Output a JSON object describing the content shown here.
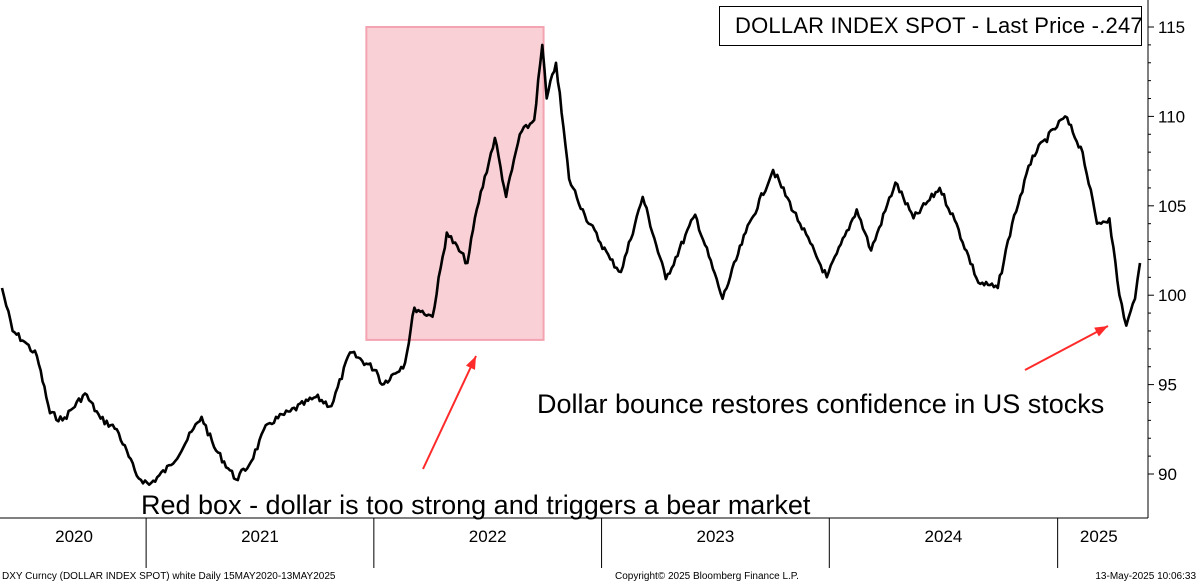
{
  "chart_data": {
    "type": "line",
    "title": "",
    "xlabel": "",
    "ylabel": "",
    "ylim": [
      87,
      116
    ],
    "yticks": [
      90,
      95,
      100,
      105,
      110,
      115
    ],
    "x_years": [
      "2020",
      "2021",
      "2022",
      "2023",
      "2024",
      "2025"
    ],
    "legend": "DOLLAR INDEX SPOT - Last Price  -.247",
    "series": [
      {
        "name": "DOLLAR INDEX SPOT - Last Price",
        "color": "#000000",
        "points": [
          [
            "2020-05-15",
            100.4
          ],
          [
            "2020-06-01",
            98.0
          ],
          [
            "2020-06-20",
            97.4
          ],
          [
            "2020-07-10",
            96.6
          ],
          [
            "2020-07-31",
            93.4
          ],
          [
            "2020-08-20",
            93.0
          ],
          [
            "2020-09-25",
            94.5
          ],
          [
            "2020-10-20",
            93.1
          ],
          [
            "2020-11-15",
            92.5
          ],
          [
            "2020-12-17",
            89.9
          ],
          [
            "2021-01-06",
            89.4
          ],
          [
            "2021-02-10",
            90.5
          ],
          [
            "2021-03-31",
            93.2
          ],
          [
            "2021-04-20",
            91.5
          ],
          [
            "2021-05-25",
            89.7
          ],
          [
            "2021-06-15",
            90.5
          ],
          [
            "2021-07-15",
            92.8
          ],
          [
            "2021-08-20",
            93.5
          ],
          [
            "2021-09-30",
            94.3
          ],
          [
            "2021-10-25",
            93.8
          ],
          [
            "2021-11-24",
            96.8
          ],
          [
            "2022-01-05",
            95.8
          ],
          [
            "2022-01-14",
            95.0
          ],
          [
            "2022-02-20",
            96.2
          ],
          [
            "2022-03-07",
            99.3
          ],
          [
            "2022-04-05",
            98.8
          ],
          [
            "2022-04-28",
            103.5
          ],
          [
            "2022-05-31",
            101.8
          ],
          [
            "2022-06-15",
            104.8
          ],
          [
            "2022-07-14",
            108.8
          ],
          [
            "2022-08-01",
            105.5
          ],
          [
            "2022-08-23",
            109.0
          ],
          [
            "2022-09-15",
            109.8
          ],
          [
            "2022-09-28",
            114.0
          ],
          [
            "2022-10-05",
            111.0
          ],
          [
            "2022-10-20",
            113.0
          ],
          [
            "2022-11-10",
            106.5
          ],
          [
            "2022-12-05",
            104.5
          ],
          [
            "2023-01-15",
            102.0
          ],
          [
            "2023-02-01",
            101.3
          ],
          [
            "2023-03-08",
            105.5
          ],
          [
            "2023-04-14",
            100.9
          ],
          [
            "2023-05-31",
            104.5
          ],
          [
            "2023-07-14",
            99.8
          ],
          [
            "2023-08-20",
            103.5
          ],
          [
            "2023-10-03",
            107.0
          ],
          [
            "2023-11-15",
            104.0
          ],
          [
            "2023-12-28",
            101.0
          ],
          [
            "2024-02-14",
            104.8
          ],
          [
            "2024-03-08",
            102.5
          ],
          [
            "2024-04-16",
            106.3
          ],
          [
            "2024-05-15",
            104.3
          ],
          [
            "2024-06-26",
            106.0
          ],
          [
            "2024-07-20",
            104.2
          ],
          [
            "2024-08-27",
            100.7
          ],
          [
            "2024-09-27",
            100.4
          ],
          [
            "2024-10-20",
            104.0
          ],
          [
            "2024-11-22",
            107.8
          ],
          [
            "2025-01-13",
            110.0
          ],
          [
            "2025-02-10",
            108.0
          ],
          [
            "2025-03-05",
            104.0
          ],
          [
            "2025-03-25",
            104.3
          ],
          [
            "2025-04-10",
            100.0
          ],
          [
            "2025-04-21",
            98.3
          ],
          [
            "2025-05-05",
            99.8
          ],
          [
            "2025-05-13",
            101.8
          ]
        ]
      }
    ],
    "highlight_box": {
      "x_start": "2021-12-20",
      "x_end": "2022-09-30",
      "y_bottom": 97.5,
      "y_top": 115.0,
      "fill": "#f9d0d6",
      "stroke": "#f4a3b0"
    },
    "annotations": [
      {
        "text": "Red box - dollar is too strong and triggers a bear  market"
      },
      {
        "text": "Dollar bounce restores confidence in US stocks"
      }
    ],
    "arrow_color": "#ff2a2a"
  },
  "footer": {
    "left": "DXY Curncy (DOLLAR INDEX SPOT) white  Daily 15MAY2020-13MAY2025",
    "center": "Copyright© 2025 Bloomberg Finance L.P.",
    "right": "13-May-2025 10:06:33"
  }
}
